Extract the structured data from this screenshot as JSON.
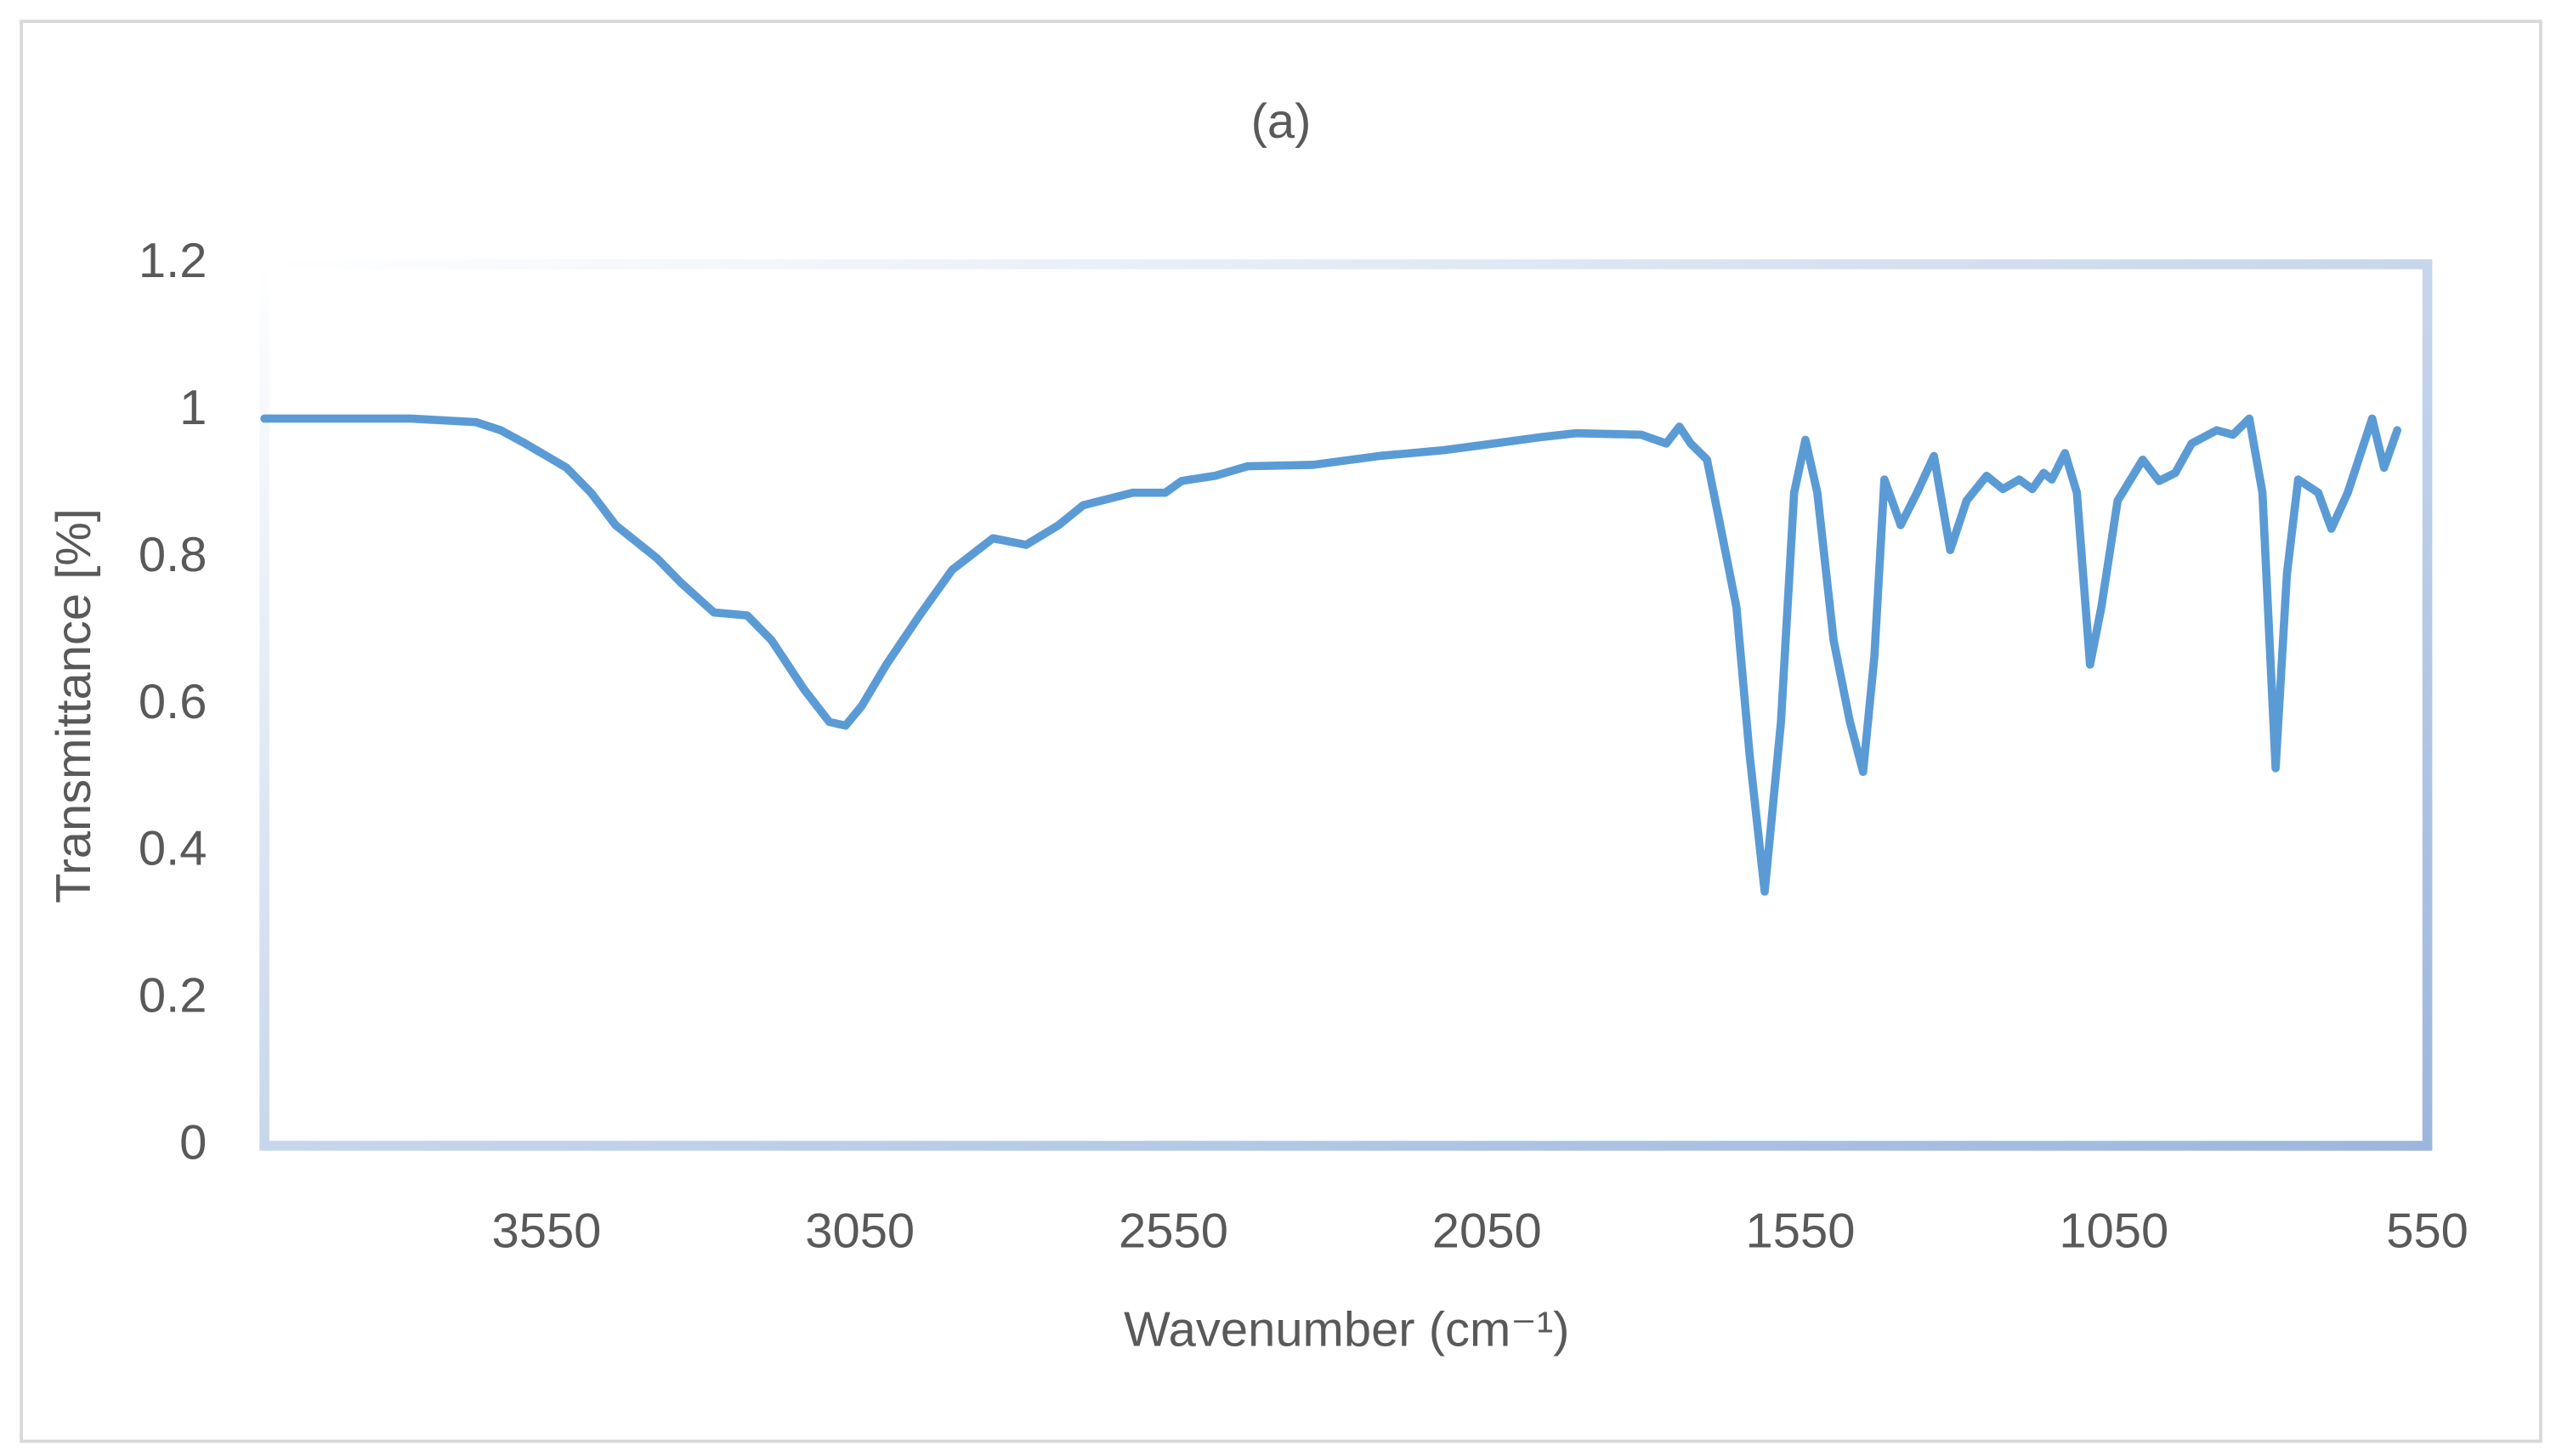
{
  "chart_data": {
    "type": "line",
    "title": "(a)",
    "x_label": "Wavenumber (cm⁻¹)",
    "y_label": "Transmittance [%]",
    "color": "#5b9bd5",
    "grid": false,
    "xlim": [
      4000,
      550
    ],
    "xticks": [
      3550,
      3050,
      2550,
      2050,
      1550,
      1050,
      550
    ],
    "ylim": [
      0,
      1.2
    ],
    "yticks": [
      0,
      0.2,
      0.4,
      0.6,
      0.8,
      1,
      1.2
    ],
    "x": [
      4000,
      3898,
      3767,
      3662,
      3623,
      3584,
      3518,
      3479,
      3440,
      3374,
      3335,
      3283,
      3230,
      3191,
      3139,
      3099,
      3073,
      3047,
      3008,
      2955,
      2903,
      2838,
      2785,
      2733,
      2694,
      2615,
      2563,
      2537,
      2484,
      2432,
      2327,
      2222,
      2118,
      2039,
      1961,
      1908,
      1804,
      1764,
      1743,
      1725,
      1699,
      1678,
      1652,
      1631,
      1607,
      1581,
      1560,
      1542,
      1523,
      1497,
      1471,
      1450,
      1432,
      1416,
      1390,
      1364,
      1337,
      1311,
      1285,
      1253,
      1227,
      1201,
      1180,
      1162,
      1149,
      1128,
      1109,
      1088,
      1070,
      1044,
      1004,
      978,
      952,
      926,
      886,
      860,
      834,
      813,
      792,
      774,
      756,
      724,
      703,
      677,
      638,
      619,
      598
    ],
    "values": [
      0.99,
      0.99,
      0.99,
      0.985,
      0.974,
      0.956,
      0.923,
      0.889,
      0.845,
      0.8,
      0.766,
      0.726,
      0.722,
      0.688,
      0.621,
      0.577,
      0.572,
      0.599,
      0.655,
      0.722,
      0.784,
      0.827,
      0.818,
      0.845,
      0.872,
      0.889,
      0.889,
      0.905,
      0.912,
      0.925,
      0.927,
      0.939,
      0.947,
      0.956,
      0.965,
      0.97,
      0.968,
      0.956,
      0.979,
      0.956,
      0.934,
      0.845,
      0.733,
      0.532,
      0.346,
      0.577,
      0.889,
      0.961,
      0.889,
      0.688,
      0.577,
      0.509,
      0.666,
      0.907,
      0.845,
      0.889,
      0.939,
      0.811,
      0.878,
      0.912,
      0.894,
      0.907,
      0.894,
      0.916,
      0.907,
      0.943,
      0.889,
      0.655,
      0.733,
      0.878,
      0.934,
      0.905,
      0.916,
      0.956,
      0.974,
      0.968,
      0.99,
      0.889,
      0.514,
      0.778,
      0.907,
      0.889,
      0.84,
      0.889,
      0.99,
      0.923,
      0.974
    ]
  }
}
